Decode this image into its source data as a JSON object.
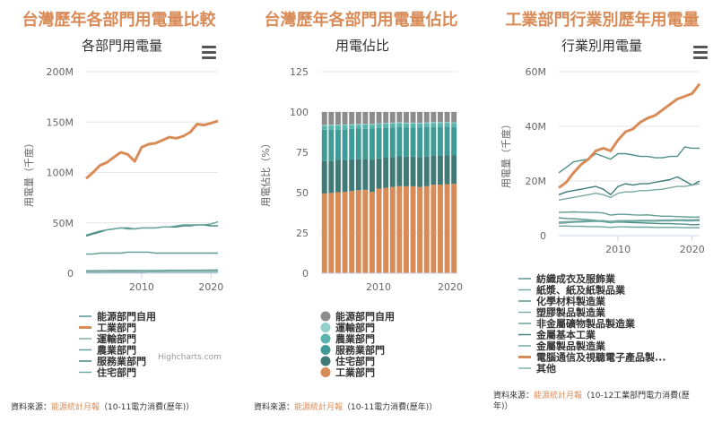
{
  "panels": [
    {
      "title": "台灣歷年各部門用電量比較",
      "source_prefix": "資料來源：",
      "source_link": "能源統計月報",
      "source_suffix": "（10-11電力消費(歷年)）",
      "credit": "Highcharts.com"
    },
    {
      "title": "台灣歷年各部門用電量佔比",
      "source_prefix": "資料來源：",
      "source_link": "能源統計月報",
      "source_suffix": "（10-11電力消費(歷年)）",
      "credit": ""
    },
    {
      "title": "工業部門行業別歷年用電量",
      "source_prefix": "資料來源：",
      "source_link": "能源統計月報",
      "source_suffix": "（10-12工業部門電力消費(歷年)）",
      "credit": ""
    }
  ],
  "colors": {
    "title": "#d98b57",
    "industry": "#d98b57",
    "gray": "#8c8c8c",
    "grid": "#e6e6e6"
  },
  "icons": {
    "menu": "hamburger-menu-icon"
  },
  "chart_data": [
    {
      "type": "line",
      "title": "各部門用電量",
      "ylabel": "用電量（千度）",
      "ylim": [
        0,
        200000000
      ],
      "yticks": [
        "0",
        "50M",
        "100M",
        "150M",
        "200M"
      ],
      "xticks": [
        "2010",
        "2020"
      ],
      "x": [
        2002,
        2003,
        2004,
        2005,
        2006,
        2007,
        2008,
        2009,
        2010,
        2011,
        2012,
        2013,
        2014,
        2015,
        2016,
        2017,
        2018,
        2019,
        2020,
        2021
      ],
      "series": [
        {
          "name": "能源部門自用",
          "color": "#4f8f8a",
          "width": 1.4,
          "values": [
            2500000.0,
            2500000.0,
            2600000.0,
            2600000.0,
            2700000.0,
            2700000.0,
            2700000.0,
            2700000.0,
            2800000.0,
            2800000.0,
            2800000.0,
            2800000.0,
            2900000.0,
            2900000.0,
            2900000.0,
            3000000.0,
            3000000.0,
            3000000.0,
            3100000.0,
            3100000.0
          ]
        },
        {
          "name": "工業部門",
          "color": "#d98b57",
          "width": 3,
          "values": [
            94000000.0,
            100000000.0,
            107000000.0,
            110000000.0,
            115000000.0,
            120000000.0,
            118000000.0,
            111000000.0,
            125000000.0,
            128000000.0,
            129000000.0,
            132000000.0,
            135000000.0,
            134000000.0,
            136000000.0,
            140000000.0,
            148000000.0,
            147000000.0,
            149000000.0,
            151000000.0
          ]
        },
        {
          "name": "運輸部門",
          "color": "#7aa8a3",
          "width": 1.4,
          "values": [
            1000000.0,
            1000000.0,
            1000000.0,
            1100000.0,
            1100000.0,
            1100000.0,
            1100000.0,
            1100000.0,
            1100000.0,
            1200000.0,
            1200000.0,
            1200000.0,
            1200000.0,
            1200000.0,
            1200000.0,
            1300000.0,
            1300000.0,
            1300000.0,
            1300000.0,
            1300000.0
          ]
        },
        {
          "name": "農業部門",
          "color": "#5f9c95",
          "width": 1.4,
          "values": [
            19000000.0,
            19000000.0,
            20000000.0,
            20000000.0,
            20000000.0,
            20000000.0,
            21000000.0,
            21000000.0,
            21000000.0,
            21000000.0,
            20000000.0,
            20000000.0,
            20000000.0,
            20000000.0,
            20000000.0,
            20000000.0,
            20000000.0,
            20000000.0,
            20000000.0,
            20000000.0
          ]
        },
        {
          "name": "服務業部門",
          "color": "#3e7d78",
          "width": 1.4,
          "values": [
            37000000.0,
            39000000.0,
            41000000.0,
            43000000.0,
            44000000.0,
            45000000.0,
            45000000.0,
            44000000.0,
            45000000.0,
            45000000.0,
            45000000.0,
            46000000.0,
            46000000.0,
            46000000.0,
            47000000.0,
            47000000.0,
            48000000.0,
            48000000.0,
            47000000.0,
            47000000.0
          ]
        },
        {
          "name": "住宅部門",
          "color": "#6aa6a0",
          "width": 1.4,
          "values": [
            38000000.0,
            40000000.0,
            42000000.0,
            43000000.0,
            44000000.0,
            45000000.0,
            44000000.0,
            44000000.0,
            45000000.0,
            45000000.0,
            45000000.0,
            46000000.0,
            46000000.0,
            47000000.0,
            48000000.0,
            48000000.0,
            48000000.0,
            48000000.0,
            49000000.0,
            51000000.0
          ]
        }
      ]
    },
    {
      "type": "bar",
      "title": "用電佔比",
      "ylabel": "用電佔比（%）",
      "ylim": [
        0,
        125
      ],
      "yticks": [
        "0",
        "25",
        "50",
        "75",
        "100",
        "125"
      ],
      "xticks": [
        "2010",
        "2020"
      ],
      "x": [
        2002,
        2003,
        2004,
        2005,
        2006,
        2007,
        2008,
        2009,
        2010,
        2011,
        2012,
        2013,
        2014,
        2015,
        2016,
        2017,
        2018,
        2019,
        2020,
        2021
      ],
      "series": [
        {
          "name": "工業部門",
          "color": "#d98b57",
          "values": [
            49.5,
            49.8,
            50.3,
            50.5,
            51,
            51.5,
            51.8,
            50.5,
            52.5,
            53,
            53.5,
            54,
            54,
            54,
            53.5,
            54,
            55,
            55,
            55.3,
            55.5
          ]
        },
        {
          "name": "住宅部門",
          "color": "#3f7a76",
          "values": [
            20,
            19.8,
            19.7,
            19.5,
            19.3,
            19.2,
            19,
            20,
            18.8,
            18.7,
            18.6,
            18.5,
            18.4,
            18.4,
            18.6,
            18.4,
            18,
            18,
            18,
            17.8
          ]
        },
        {
          "name": "服務業部門",
          "color": "#3f9b95",
          "values": [
            19.5,
            19.5,
            19.3,
            19.3,
            19.2,
            19,
            19,
            19.2,
            18.8,
            18.6,
            18.4,
            18.3,
            18.2,
            18.2,
            18.4,
            18.2,
            17.8,
            17.8,
            17.6,
            17.4
          ]
        },
        {
          "name": "農業部門",
          "color": "#57b5ae",
          "values": [
            2.5,
            2.5,
            2.4,
            2.4,
            2.4,
            2.4,
            2.4,
            2.4,
            2.4,
            2.4,
            2.4,
            2.4,
            2.4,
            2.4,
            2.4,
            2.4,
            2.4,
            2.4,
            2.4,
            2.4
          ]
        },
        {
          "name": "運輸部門",
          "color": "#8fd0cb",
          "values": [
            0.5,
            0.5,
            0.5,
            0.5,
            0.5,
            0.5,
            0.5,
            0.5,
            0.5,
            0.5,
            0.5,
            0.5,
            0.5,
            0.5,
            0.5,
            0.5,
            0.5,
            0.5,
            0.5,
            0.5
          ]
        },
        {
          "name": "能源部門自用",
          "color": "#8c8c8c",
          "values": [
            8,
            7.9,
            7.8,
            7.8,
            7.6,
            7.4,
            7.3,
            7.4,
            7,
            6.8,
            6.6,
            6.3,
            6.6,
            6.6,
            6.6,
            6.5,
            6.3,
            6.3,
            6.2,
            6.4
          ]
        }
      ],
      "legend_order": [
        "能源部門自用",
        "運輸部門",
        "農業部門",
        "服務業部門",
        "住宅部門",
        "工業部門"
      ]
    },
    {
      "type": "line",
      "title": "行業別用電量",
      "ylabel": "用電量（千度）",
      "ylim": [
        0,
        60000000
      ],
      "yticks": [
        "0",
        "20M",
        "40M",
        "60M"
      ],
      "xticks": [
        "2010",
        "2020"
      ],
      "x": [
        2002,
        2003,
        2004,
        2005,
        2006,
        2007,
        2008,
        2009,
        2010,
        2011,
        2012,
        2013,
        2014,
        2015,
        2016,
        2017,
        2018,
        2019,
        2020,
        2021
      ],
      "series": [
        {
          "name": "紡織成衣及服飾業",
          "color": "#4f8f8a",
          "width": 1.4,
          "values": [
            6500000.0,
            6300000.0,
            6200000.0,
            6000000.0,
            5800000.0,
            5600000.0,
            5300000.0,
            4800000.0,
            5000000.0,
            4900000.0,
            4800000.0,
            4700000.0,
            4600000.0,
            4500000.0,
            4400000.0,
            4400000.0,
            4300000.0,
            4200000.0,
            4000000.0,
            4100000.0
          ]
        },
        {
          "name": "紙漿、紙及紙製品業",
          "color": "#6aa6a0",
          "width": 1.4,
          "values": [
            3500000.0,
            3500000.0,
            3400000.0,
            3400000.0,
            3300000.0,
            3300000.0,
            3200000.0,
            3000000.0,
            3200000.0,
            3200000.0,
            3100000.0,
            3100000.0,
            3100000.0,
            3000000.0,
            3000000.0,
            3000000.0,
            3000000.0,
            2900000.0,
            2900000.0,
            2900000.0
          ]
        },
        {
          "name": "化學材料製造業",
          "color": "#4f8f8a",
          "width": 1.4,
          "values": [
            23000000.0,
            25000000.0,
            27000000.0,
            27500000.0,
            28000000.0,
            30000000.0,
            29000000.0,
            28000000.0,
            30000000.0,
            30000000.0,
            29500000.0,
            29000000.0,
            29000000.0,
            28500000.0,
            28500000.0,
            29000000.0,
            29000000.0,
            32500000.0,
            32000000.0,
            32000000.0
          ]
        },
        {
          "name": "塑膠製品製造業",
          "color": "#7aa8a3",
          "width": 1.4,
          "values": [
            5000000.0,
            5100000.0,
            5200000.0,
            5300000.0,
            5400000.0,
            5500000.0,
            5500000.0,
            5200000.0,
            5500000.0,
            5500000.0,
            5500000.0,
            5600000.0,
            5600000.0,
            5600000.0,
            5700000.0,
            5700000.0,
            5800000.0,
            5800000.0,
            5800000.0,
            5900000.0
          ]
        },
        {
          "name": "非金屬礦物製品製造業",
          "color": "#5f9c95",
          "width": 1.4,
          "values": [
            8500000.0,
            8600000.0,
            8700000.0,
            8600000.0,
            8500000.0,
            8500000.0,
            8300000.0,
            7500000.0,
            7800000.0,
            7800000.0,
            7600000.0,
            7500000.0,
            7600000.0,
            7300000.0,
            7100000.0,
            7100000.0,
            7000000.0,
            6900000.0,
            6800000.0,
            6800000.0
          ]
        },
        {
          "name": "金屬基本工業",
          "color": "#3e7d78",
          "width": 1.4,
          "values": [
            15000000.0,
            16000000.0,
            16500000.0,
            17000000.0,
            17500000.0,
            18000000.0,
            17000000.0,
            15000000.0,
            18000000.0,
            19000000.0,
            18500000.0,
            19000000.0,
            19000000.0,
            19500000.0,
            20000000.0,
            20500000.0,
            21500000.0,
            20000000.0,
            18500000.0,
            20000000.0
          ]
        },
        {
          "name": "金屬製品製造業",
          "color": "#6aa6a0",
          "width": 1.4,
          "values": [
            4500000.0,
            4700000.0,
            4900000.0,
            5000000.0,
            5100000.0,
            5200000.0,
            5100000.0,
            4700000.0,
            5100000.0,
            5200000.0,
            5200000.0,
            5300000.0,
            5300000.0,
            5300000.0,
            5400000.0,
            5400000.0,
            5500000.0,
            5400000.0,
            5400000.0,
            5500000.0
          ]
        },
        {
          "name": "電腦通信及視聽電子產品製...",
          "color": "#d98b57",
          "width": 3,
          "values": [
            17500000.0,
            19500000.0,
            23000000.0,
            26000000.0,
            28000000.0,
            31000000.0,
            32000000.0,
            31000000.0,
            35000000.0,
            38000000.0,
            39000000.0,
            41500000.0,
            43000000.0,
            44000000.0,
            46000000.0,
            48000000.0,
            50000000.0,
            51000000.0,
            52000000.0,
            55500000.0
          ]
        },
        {
          "name": "其他",
          "color": "#7aa8a3",
          "width": 1.4,
          "values": [
            13000000.0,
            13500000.0,
            14000000.0,
            14500000.0,
            15000000.0,
            15500000.0,
            15000000.0,
            14000000.0,
            15500000.0,
            16000000.0,
            16000000.0,
            16500000.0,
            16500000.0,
            16800000.0,
            17000000.0,
            17500000.0,
            18000000.0,
            18000000.0,
            18500000.0,
            19000000.0
          ]
        }
      ]
    }
  ]
}
